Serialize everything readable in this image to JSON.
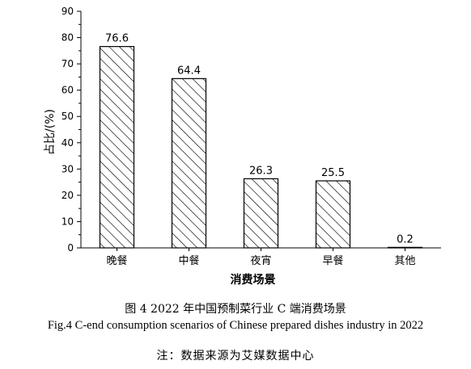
{
  "figure_caption_zh": "图 4 2022 年中国预制菜行业 C 端消费场景",
  "figure_caption_en": "Fig.4 C-end consumption scenarios of Chinese prepared dishes industry in 2022",
  "source_note": "注：数据来源为艾媒数据中心",
  "chart_data": {
    "type": "bar",
    "title": "",
    "xlabel": "消费场景",
    "ylabel": "占比/(%)",
    "ylim": [
      0,
      90
    ],
    "yticks": [
      0,
      10,
      20,
      30,
      40,
      50,
      60,
      70,
      80,
      90
    ],
    "categories": [
      "晚餐",
      "中餐",
      "夜宵",
      "早餐",
      "其他"
    ],
    "values": [
      76.6,
      64.4,
      26.3,
      25.5,
      0.2
    ],
    "value_labels": [
      "76.6",
      "64.4",
      "26.3",
      "25.5",
      "0.2"
    ],
    "bar_fill": "diagonal-hatch",
    "bar_color": "#000000",
    "grid": false,
    "legend": "none"
  }
}
